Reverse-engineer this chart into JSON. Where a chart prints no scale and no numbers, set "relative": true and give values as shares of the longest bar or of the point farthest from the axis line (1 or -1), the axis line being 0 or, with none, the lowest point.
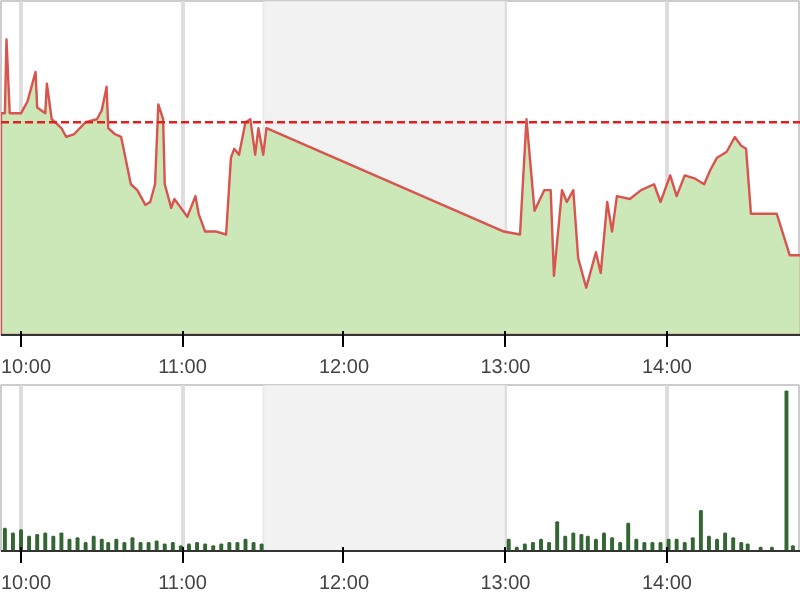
{
  "chart_data": [
    {
      "type": "area",
      "relative": true,
      "xlim": [
        9.876,
        14.83
      ],
      "xticks": [
        {
          "value": 10,
          "label": "10:00"
        },
        {
          "value": 11,
          "label": "11:00"
        },
        {
          "value": 12,
          "label": "12:00"
        },
        {
          "value": 13,
          "label": "13:00"
        },
        {
          "value": 14,
          "label": "14:00"
        }
      ],
      "grid": "x",
      "bands": [
        {
          "axis": "x",
          "from": 11.5,
          "to": 13.0,
          "color": "#f2f2f2"
        }
      ],
      "ref_lines": [
        {
          "axis": "y",
          "value": 0.72,
          "color": "#e02020",
          "line_style": "dashed"
        }
      ],
      "series": [
        {
          "color": "#cde8b8",
          "x": [
            9.876,
            9.9,
            9.91,
            9.93,
            10.0,
            10.04,
            10.09,
            10.1,
            10.15,
            10.16,
            10.19,
            10.25,
            10.28,
            10.33,
            10.4,
            10.47,
            10.5,
            10.53,
            10.54,
            10.58,
            10.62,
            10.68,
            10.72,
            10.77,
            10.8,
            10.83,
            10.85,
            10.88,
            10.89,
            10.93,
            10.95,
            10.99,
            11.03,
            11.08,
            11.1,
            11.14,
            11.21,
            11.27,
            11.3,
            11.32,
            11.35,
            11.39,
            11.42,
            11.45,
            11.47,
            11.5,
            11.52,
            12.99,
            13.09,
            13.13,
            13.18,
            13.24,
            13.28,
            13.3,
            13.35,
            13.38,
            13.42,
            13.45,
            13.5,
            13.54,
            13.56,
            13.59,
            13.63,
            13.66,
            13.69,
            13.77,
            13.84,
            13.92,
            13.96,
            14.02,
            14.06,
            14.11,
            14.17,
            14.23,
            14.27,
            14.31,
            14.37,
            14.42,
            14.46,
            14.49,
            14.52,
            14.68,
            14.76,
            14.83
          ],
          "values": [
            0.75,
            0.75,
            1.0,
            0.75,
            0.75,
            0.79,
            0.89,
            0.77,
            0.75,
            0.85,
            0.73,
            0.7,
            0.67,
            0.68,
            0.72,
            0.73,
            0.76,
            0.84,
            0.7,
            0.68,
            0.67,
            0.51,
            0.49,
            0.44,
            0.45,
            0.51,
            0.78,
            0.73,
            0.51,
            0.43,
            0.46,
            0.43,
            0.4,
            0.47,
            0.41,
            0.35,
            0.35,
            0.34,
            0.6,
            0.63,
            0.61,
            0.72,
            0.73,
            0.61,
            0.7,
            0.61,
            0.7,
            0.35,
            0.34,
            0.73,
            0.42,
            0.49,
            0.49,
            0.2,
            0.49,
            0.45,
            0.49,
            0.26,
            0.16,
            0.24,
            0.28,
            0.21,
            0.45,
            0.35,
            0.47,
            0.46,
            0.49,
            0.51,
            0.45,
            0.54,
            0.47,
            0.54,
            0.53,
            0.51,
            0.56,
            0.6,
            0.62,
            0.67,
            0.64,
            0.63,
            0.41,
            0.41,
            0.27,
            0.27
          ]
        }
      ]
    },
    {
      "type": "bar",
      "relative": true,
      "color": "#336633",
      "xlim": [
        9.876,
        14.83
      ],
      "xticks": [
        {
          "value": 10,
          "label": "10:00"
        },
        {
          "value": 11,
          "label": "11:00"
        },
        {
          "value": 12,
          "label": "12:00"
        },
        {
          "value": 13,
          "label": "13:00"
        },
        {
          "value": 14,
          "label": "14:00"
        }
      ],
      "grid": "x",
      "bands": [
        {
          "axis": "x",
          "from": 11.5,
          "to": 13.0,
          "color": "#f2f2f2"
        }
      ],
      "x": [
        9.9,
        9.95,
        10.0,
        10.05,
        10.1,
        10.15,
        10.2,
        10.25,
        10.3,
        10.35,
        10.4,
        10.45,
        10.5,
        10.54,
        10.59,
        10.64,
        10.69,
        10.74,
        10.79,
        10.84,
        10.89,
        10.94,
        10.99,
        11.04,
        11.09,
        11.14,
        11.19,
        11.24,
        11.29,
        11.34,
        11.39,
        11.44,
        11.49,
        13.02,
        13.07,
        13.12,
        13.17,
        13.22,
        13.27,
        13.32,
        13.37,
        13.42,
        13.47,
        13.51,
        13.56,
        13.61,
        13.66,
        13.71,
        13.76,
        13.81,
        13.86,
        13.91,
        13.96,
        14.01,
        14.06,
        14.11,
        14.16,
        14.21,
        14.26,
        14.31,
        14.36,
        14.41,
        14.46,
        14.5,
        14.58,
        14.65,
        14.74,
        14.78
      ],
      "values": [
        0.14,
        0.11,
        0.13,
        0.09,
        0.1,
        0.11,
        0.09,
        0.11,
        0.07,
        0.08,
        0.05,
        0.09,
        0.07,
        0.05,
        0.07,
        0.05,
        0.08,
        0.05,
        0.05,
        0.06,
        0.04,
        0.05,
        0.03,
        0.04,
        0.05,
        0.04,
        0.03,
        0.04,
        0.05,
        0.05,
        0.07,
        0.05,
        0.04,
        0.07,
        0.02,
        0.04,
        0.05,
        0.07,
        0.05,
        0.18,
        0.09,
        0.11,
        0.1,
        0.09,
        0.07,
        0.11,
        0.08,
        0.05,
        0.17,
        0.07,
        0.05,
        0.05,
        0.05,
        0.07,
        0.07,
        0.05,
        0.08,
        0.25,
        0.09,
        0.07,
        0.11,
        0.08,
        0.05,
        0.04,
        0.02,
        0.02,
        1.0,
        0.03
      ]
    }
  ]
}
